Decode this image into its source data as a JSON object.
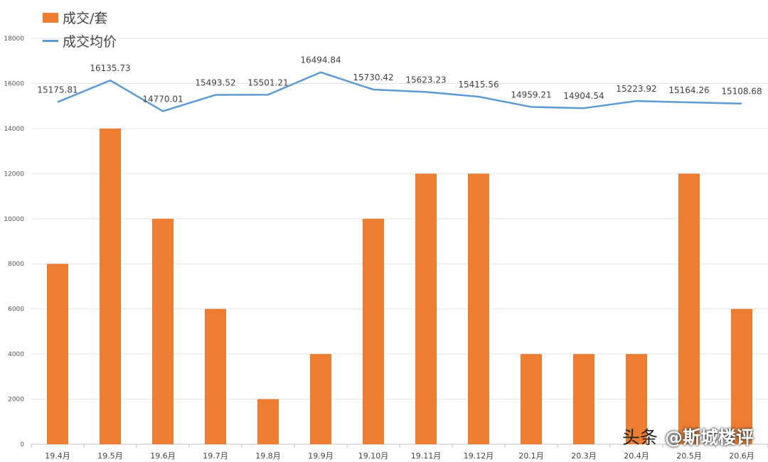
{
  "legend": {
    "bar_label": "成交/套",
    "line_label": "成交均价"
  },
  "watermark": {
    "prefix": "头条",
    "handle": "@斯城楼评"
  },
  "chart_data": {
    "type": "bar+line",
    "categories": [
      "19.4月",
      "19.5月",
      "19.6月",
      "19.7月",
      "19.8月",
      "19.9月",
      "19.10月",
      "19.11月",
      "19.12月",
      "20.1月",
      "20.3月",
      "20.4月",
      "20.5月",
      "20.6月"
    ],
    "series": [
      {
        "name": "成交/套",
        "type": "bar",
        "color": "#ED7D31",
        "values": [
          8000,
          14000,
          10000,
          6000,
          2000,
          4000,
          10000,
          12000,
          12000,
          4000,
          4000,
          4000,
          12000,
          6000
        ]
      },
      {
        "name": "成交均价",
        "type": "line",
        "color": "#5B9BD5",
        "values": [
          15175.81,
          16135.73,
          14770.01,
          15493.52,
          15501.21,
          16494.84,
          15730.42,
          15623.23,
          15415.56,
          14959.21,
          14904.54,
          15223.92,
          15164.26,
          15108.68
        ],
        "labels": [
          "15175.81",
          "16135.73",
          "14770.01",
          "15493.52",
          "15501.21",
          "16494.84",
          "15730.42",
          "15623.23",
          "15415.56",
          "14959.21",
          "14904.54",
          "15223.92",
          "15164.26",
          "15108.68"
        ]
      }
    ],
    "y_ticks": [
      "0",
      "2000",
      "4000",
      "6000",
      "8000",
      "10000",
      "12000",
      "14000",
      "16000",
      "18000"
    ],
    "ylim": [
      0,
      18000
    ],
    "grid": true,
    "legend_position": "top-left"
  }
}
